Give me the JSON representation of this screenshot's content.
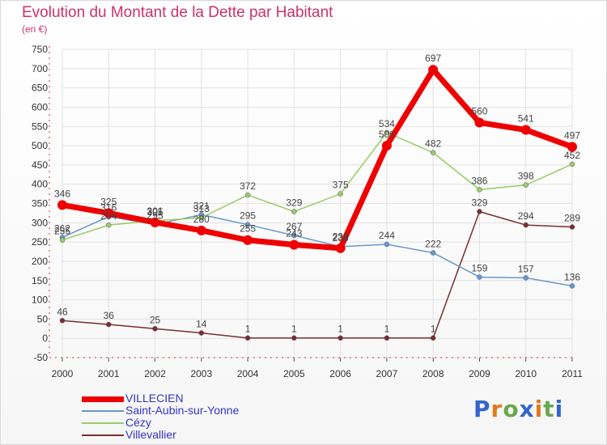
{
  "chart_data": {
    "type": "line",
    "title": "Evolution du Montant de la Dette par Habitant",
    "subtitle": "(en €)",
    "categories": [
      "2000",
      "2001",
      "2002",
      "2003",
      "2004",
      "2005",
      "2006",
      "2007",
      "2008",
      "2009",
      "2010",
      "2011"
    ],
    "ylim": [
      -50,
      750
    ],
    "yticks": [
      -50,
      0,
      50,
      100,
      150,
      200,
      250,
      300,
      350,
      400,
      450,
      500,
      550,
      600,
      650,
      700,
      750
    ],
    "grid": true,
    "legend_position": "bottom-left",
    "series": [
      {
        "name": "VILLECIEN",
        "color": "#ee0000",
        "values": [
          346,
          325,
          301,
          280,
          255,
          243,
          234,
          500,
          697,
          560,
          541,
          497
        ]
      },
      {
        "name": "Saint-Aubin-sur-Yonne",
        "color": "#6699cc",
        "values": [
          262,
          316,
          295,
          321,
          295,
          267,
          238,
          244,
          222,
          159,
          157,
          136
        ]
      },
      {
        "name": "Cézy",
        "color": "#99cc66",
        "values": [
          255,
          294,
          305,
          313,
          372,
          329,
          375,
          534,
          482,
          386,
          398,
          452
        ]
      },
      {
        "name": "Villevallier",
        "color": "#7a2e2e",
        "values": [
          46,
          36,
          25,
          14,
          1,
          1,
          1,
          1,
          1,
          329,
          294,
          289
        ]
      }
    ]
  },
  "logo": {
    "text": "Proxiti",
    "colors": [
      "#3366cc",
      "#e07a1f",
      "#6aa84f",
      "#3366cc",
      "#e07a1f",
      "#6aa84f",
      "#3366cc"
    ]
  }
}
